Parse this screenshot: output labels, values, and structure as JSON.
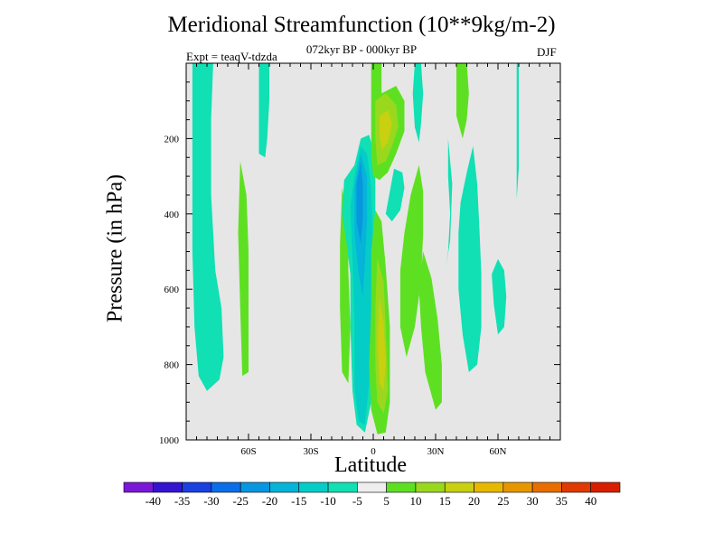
{
  "chart_data": {
    "type": "heatmap",
    "title": "Meridional Streamfunction (10**9kg/m-2)",
    "subtitle": "072kyr BP - 000kyr BP",
    "left_label": "Expt = teaqV-tdzda",
    "right_label": "DJF",
    "xlabel": "Latitude",
    "ylabel": "Pressure (in hPa)",
    "xlim": [
      -90,
      90
    ],
    "ylim": [
      1000,
      0
    ],
    "x_ticks": [
      {
        "value": -60,
        "label": "60S"
      },
      {
        "value": -30,
        "label": "30S"
      },
      {
        "value": 0,
        "label": "0"
      },
      {
        "value": 30,
        "label": "30N"
      },
      {
        "value": 60,
        "label": "60N"
      }
    ],
    "y_ticks": [
      {
        "value": 200,
        "label": "200"
      },
      {
        "value": 400,
        "label": "400"
      },
      {
        "value": 600,
        "label": "600"
      },
      {
        "value": 800,
        "label": "800"
      },
      {
        "value": 1000,
        "label": "1000"
      }
    ],
    "background_color": "#e6e6e6",
    "colorbar": {
      "levels": [
        "-40",
        "-35",
        "-30",
        "-25",
        "-20",
        "-15",
        "-10",
        "-5",
        "5",
        "10",
        "15",
        "20",
        "25",
        "30",
        "35",
        "40"
      ],
      "colors": [
        "#7a18d8",
        "#3414d0",
        "#1a40e0",
        "#0a6ee8",
        "#0896e0",
        "#05b4d8",
        "#04cdc8",
        "#10e0b4",
        "#eeeeee",
        "#5ee022",
        "#9ad81e",
        "#c8d010",
        "#e8b800",
        "#e89600",
        "#e86e00",
        "#e03a00",
        "#d81e00"
      ]
    },
    "contours": [
      {
        "name": "tongue-80s",
        "color": "#10e0b4",
        "points": [
          [
            -87,
            0
          ],
          [
            -77,
            0
          ],
          [
            -78,
            150
          ],
          [
            -78,
            350
          ],
          [
            -76,
            550
          ],
          [
            -73,
            650
          ],
          [
            -72,
            780
          ],
          [
            -74,
            840
          ],
          [
            -80,
            870
          ],
          [
            -84,
            830
          ],
          [
            -86,
            700
          ],
          [
            -87,
            500
          ],
          [
            -87,
            250
          ]
        ]
      },
      {
        "name": "tongue-55s",
        "color": "#10e0b4",
        "points": [
          [
            -55,
            0
          ],
          [
            -50,
            0
          ],
          [
            -50,
            100
          ],
          [
            -51,
            200
          ],
          [
            -52,
            250
          ],
          [
            -55,
            240
          ],
          [
            -55,
            150
          ]
        ]
      },
      {
        "name": "band-63s",
        "color": "#5ee022",
        "points": [
          [
            -64,
            260
          ],
          [
            -61,
            350
          ],
          [
            -60,
            500
          ],
          [
            -60,
            650
          ],
          [
            -60,
            820
          ],
          [
            -63,
            830
          ],
          [
            -64,
            650
          ],
          [
            -65,
            450
          ]
        ]
      },
      {
        "name": "band-15s",
        "color": "#5ee022",
        "points": [
          [
            -15,
            330
          ],
          [
            -12,
            420
          ],
          [
            -12,
            550
          ],
          [
            -11,
            700
          ],
          [
            -12,
            850
          ],
          [
            -15,
            820
          ],
          [
            -16,
            650
          ],
          [
            -16,
            480
          ]
        ]
      },
      {
        "name": "neg-cell",
        "color": "#10e0b4",
        "points": [
          [
            -6,
            200
          ],
          [
            -9,
            270
          ],
          [
            -14,
            310
          ],
          [
            -15,
            400
          ],
          [
            -13,
            470
          ],
          [
            -11,
            560
          ],
          [
            -11,
            700
          ],
          [
            -10,
            870
          ],
          [
            -8,
            960
          ],
          [
            -4,
            980
          ],
          [
            -1,
            900
          ],
          [
            1,
            750
          ],
          [
            2,
            570
          ],
          [
            1,
            430
          ],
          [
            1,
            250
          ],
          [
            -2,
            190
          ]
        ]
      },
      {
        "name": "neg-cell-core-1",
        "color": "#04cdc8",
        "points": [
          [
            -6,
            220
          ],
          [
            -9,
            300
          ],
          [
            -11,
            380
          ],
          [
            -10,
            520
          ],
          [
            -9,
            690
          ],
          [
            -9,
            860
          ],
          [
            -7,
            950
          ],
          [
            -4,
            960
          ],
          [
            -2,
            850
          ],
          [
            -1,
            680
          ],
          [
            0,
            520
          ],
          [
            -1,
            330
          ],
          [
            -3,
            240
          ]
        ]
      },
      {
        "name": "neg-cell-core-2",
        "color": "#05b4d8",
        "points": [
          [
            -6,
            240
          ],
          [
            -9,
            330
          ],
          [
            -9,
            450
          ],
          [
            -7,
            560
          ],
          [
            -5,
            620
          ],
          [
            -4,
            530
          ],
          [
            -3,
            420
          ],
          [
            -3,
            300
          ]
        ]
      },
      {
        "name": "neg-cell-core-3",
        "color": "#0896e0",
        "points": [
          [
            -6,
            260
          ],
          [
            -8,
            320
          ],
          [
            -8,
            420
          ],
          [
            -6,
            480
          ],
          [
            -5,
            410
          ],
          [
            -5,
            320
          ]
        ]
      },
      {
        "name": "pos-upper",
        "color": "#5ee022",
        "points": [
          [
            -1,
            0
          ],
          [
            4,
            0
          ],
          [
            4,
            80
          ],
          [
            11,
            60
          ],
          [
            15,
            100
          ],
          [
            15,
            180
          ],
          [
            11,
            240
          ],
          [
            7,
            290
          ],
          [
            3,
            310
          ],
          [
            0,
            300
          ],
          [
            -1,
            250
          ],
          [
            -1,
            150
          ]
        ]
      },
      {
        "name": "pos-upper-core",
        "color": "#9ad81e",
        "points": [
          [
            1,
            100
          ],
          [
            6,
            80
          ],
          [
            11,
            110
          ],
          [
            12,
            170
          ],
          [
            9,
            220
          ],
          [
            6,
            260
          ],
          [
            2,
            270
          ],
          [
            1,
            200
          ]
        ]
      },
      {
        "name": "pos-upper-max",
        "color": "#c8d010",
        "points": [
          [
            3,
            140
          ],
          [
            7,
            125
          ],
          [
            9,
            160
          ],
          [
            7,
            210
          ],
          [
            4,
            230
          ],
          [
            3,
            190
          ]
        ]
      },
      {
        "name": "pos-lower",
        "color": "#5ee022",
        "points": [
          [
            1,
            390
          ],
          [
            -1,
            500
          ],
          [
            -1,
            650
          ],
          [
            -2,
            800
          ],
          [
            -1,
            920
          ],
          [
            2,
            985
          ],
          [
            6,
            980
          ],
          [
            8,
            900
          ],
          [
            8,
            700
          ],
          [
            6,
            540
          ],
          [
            4,
            420
          ]
        ]
      },
      {
        "name": "pos-lower-core",
        "color": "#9ad81e",
        "points": [
          [
            2,
            520
          ],
          [
            1,
            650
          ],
          [
            1,
            800
          ],
          [
            2,
            900
          ],
          [
            5,
            930
          ],
          [
            7,
            870
          ],
          [
            6,
            700
          ],
          [
            5,
            580
          ]
        ]
      },
      {
        "name": "pos-lower-max",
        "color": "#c8d010",
        "points": [
          [
            3,
            620
          ],
          [
            2,
            740
          ],
          [
            3,
            850
          ],
          [
            5,
            870
          ],
          [
            6,
            790
          ],
          [
            5,
            690
          ]
        ]
      },
      {
        "name": "cyan-blob-12n",
        "color": "#10e0b4",
        "points": [
          [
            10,
            280
          ],
          [
            8,
            340
          ],
          [
            6,
            400
          ],
          [
            9,
            420
          ],
          [
            13,
            390
          ],
          [
            15,
            330
          ],
          [
            14,
            290
          ]
        ]
      },
      {
        "name": "cyan-blob-20n",
        "color": "#10e0b4",
        "points": [
          [
            20,
            0
          ],
          [
            23,
            0
          ],
          [
            24,
            80
          ],
          [
            23,
            160
          ],
          [
            22,
            210
          ],
          [
            20,
            170
          ],
          [
            19,
            80
          ]
        ]
      },
      {
        "name": "cyan-streak-45n",
        "color": "#10e0b4",
        "points": [
          [
            36,
            200
          ],
          [
            36,
            300
          ],
          [
            37,
            400
          ],
          [
            36,
            500
          ],
          [
            35,
            540
          ],
          [
            37,
            470
          ],
          [
            38,
            320
          ]
        ]
      },
      {
        "name": "band-20n",
        "color": "#5ee022",
        "points": [
          [
            22,
            270
          ],
          [
            18,
            350
          ],
          [
            15,
            450
          ],
          [
            13,
            550
          ],
          [
            13,
            700
          ],
          [
            16,
            780
          ],
          [
            20,
            700
          ],
          [
            23,
            580
          ],
          [
            24,
            450
          ],
          [
            24,
            340
          ]
        ]
      },
      {
        "name": "band-28n",
        "color": "#5ee022",
        "points": [
          [
            24,
            500
          ],
          [
            22,
            600
          ],
          [
            23,
            700
          ],
          [
            25,
            820
          ],
          [
            30,
            920
          ],
          [
            33,
            900
          ],
          [
            33,
            800
          ],
          [
            31,
            680
          ],
          [
            28,
            570
          ]
        ]
      },
      {
        "name": "upper-green-41n",
        "color": "#5ee022",
        "points": [
          [
            40,
            0
          ],
          [
            45,
            0
          ],
          [
            46,
            80
          ],
          [
            45,
            150
          ],
          [
            43,
            200
          ],
          [
            40,
            140
          ]
        ]
      },
      {
        "name": "band-48n",
        "color": "#10e0b4",
        "points": [
          [
            48,
            220
          ],
          [
            45,
            290
          ],
          [
            42,
            370
          ],
          [
            41,
            450
          ],
          [
            41,
            600
          ],
          [
            43,
            720
          ],
          [
            46,
            820
          ],
          [
            50,
            800
          ],
          [
            52,
            700
          ],
          [
            52,
            560
          ],
          [
            51,
            430
          ],
          [
            50,
            320
          ]
        ]
      },
      {
        "name": "blob-63n",
        "color": "#10e0b4",
        "points": [
          [
            60,
            520
          ],
          [
            57,
            560
          ],
          [
            58,
            640
          ],
          [
            60,
            720
          ],
          [
            63,
            700
          ],
          [
            64,
            620
          ],
          [
            63,
            550
          ]
        ]
      },
      {
        "name": "streak-70n",
        "color": "#10e0b4",
        "points": [
          [
            69,
            0
          ],
          [
            70,
            0
          ],
          [
            70,
            100
          ],
          [
            70,
            280
          ],
          [
            69,
            360
          ],
          [
            69,
            180
          ]
        ]
      }
    ]
  }
}
